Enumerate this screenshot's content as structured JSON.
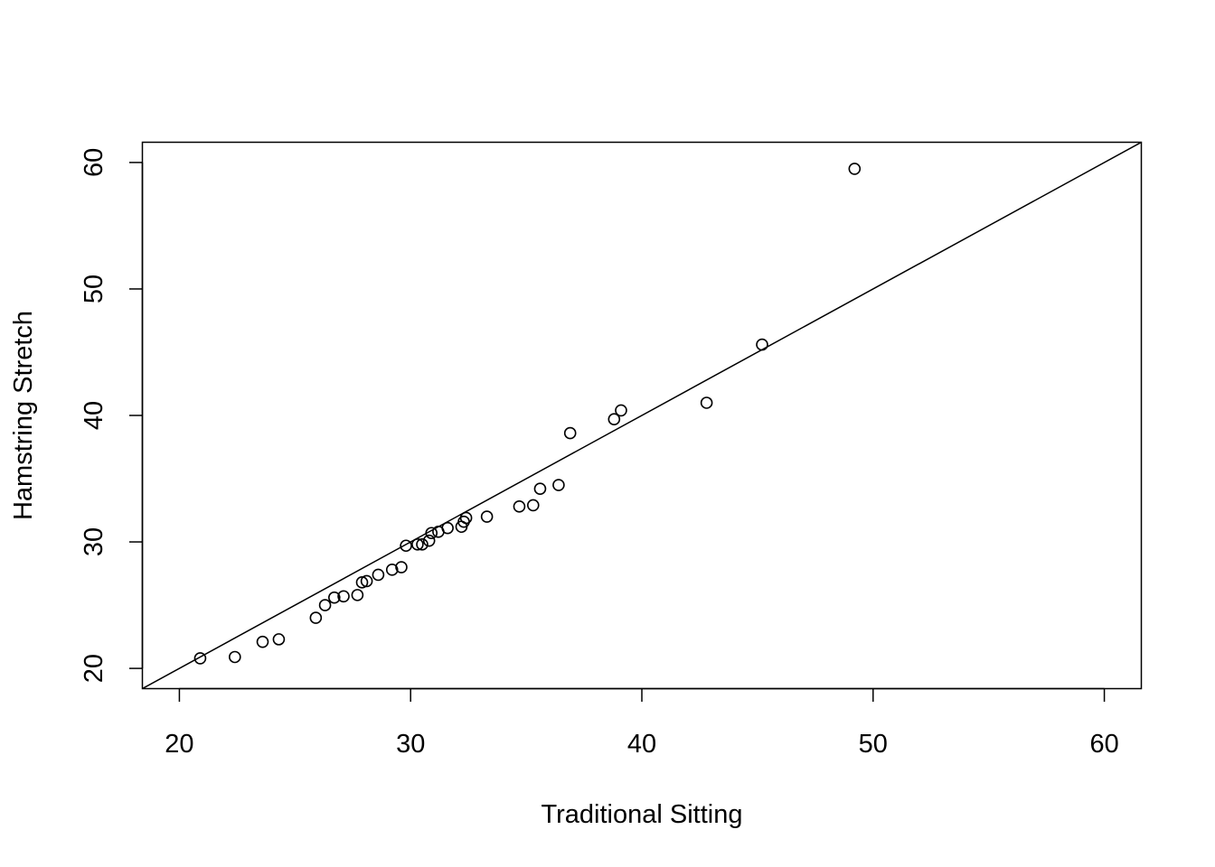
{
  "chart_data": {
    "type": "scatter",
    "title": "",
    "xlabel": "Traditional Sitting",
    "ylabel": "Hamstring Stretch",
    "xlim": [
      18.4,
      61.6
    ],
    "ylim": [
      18.4,
      61.6
    ],
    "xticks": [
      20,
      30,
      40,
      50,
      60
    ],
    "yticks": [
      20,
      30,
      40,
      50,
      60
    ],
    "grid": false,
    "reference_line": {
      "intercept": 0,
      "slope": 1
    },
    "points": [
      {
        "x": 20.9,
        "y": 20.8
      },
      {
        "x": 22.4,
        "y": 20.9
      },
      {
        "x": 23.6,
        "y": 22.1
      },
      {
        "x": 24.3,
        "y": 22.3
      },
      {
        "x": 25.9,
        "y": 24.0
      },
      {
        "x": 26.3,
        "y": 25.0
      },
      {
        "x": 26.7,
        "y": 25.6
      },
      {
        "x": 27.1,
        "y": 25.7
      },
      {
        "x": 27.7,
        "y": 25.8
      },
      {
        "x": 27.9,
        "y": 26.8
      },
      {
        "x": 28.1,
        "y": 26.9
      },
      {
        "x": 28.6,
        "y": 27.4
      },
      {
        "x": 29.2,
        "y": 27.8
      },
      {
        "x": 29.6,
        "y": 28.0
      },
      {
        "x": 29.8,
        "y": 29.7
      },
      {
        "x": 30.3,
        "y": 29.8
      },
      {
        "x": 30.5,
        "y": 29.8
      },
      {
        "x": 30.8,
        "y": 30.1
      },
      {
        "x": 30.9,
        "y": 30.7
      },
      {
        "x": 31.2,
        "y": 30.8
      },
      {
        "x": 31.6,
        "y": 31.1
      },
      {
        "x": 32.2,
        "y": 31.2
      },
      {
        "x": 32.3,
        "y": 31.6
      },
      {
        "x": 32.4,
        "y": 31.9
      },
      {
        "x": 33.3,
        "y": 32.0
      },
      {
        "x": 34.7,
        "y": 32.8
      },
      {
        "x": 35.3,
        "y": 32.9
      },
      {
        "x": 35.6,
        "y": 34.2
      },
      {
        "x": 36.4,
        "y": 34.5
      },
      {
        "x": 36.9,
        "y": 38.6
      },
      {
        "x": 38.8,
        "y": 39.7
      },
      {
        "x": 39.1,
        "y": 40.4
      },
      {
        "x": 42.8,
        "y": 41.0
      },
      {
        "x": 45.2,
        "y": 45.6
      },
      {
        "x": 49.2,
        "y": 59.5
      }
    ]
  }
}
